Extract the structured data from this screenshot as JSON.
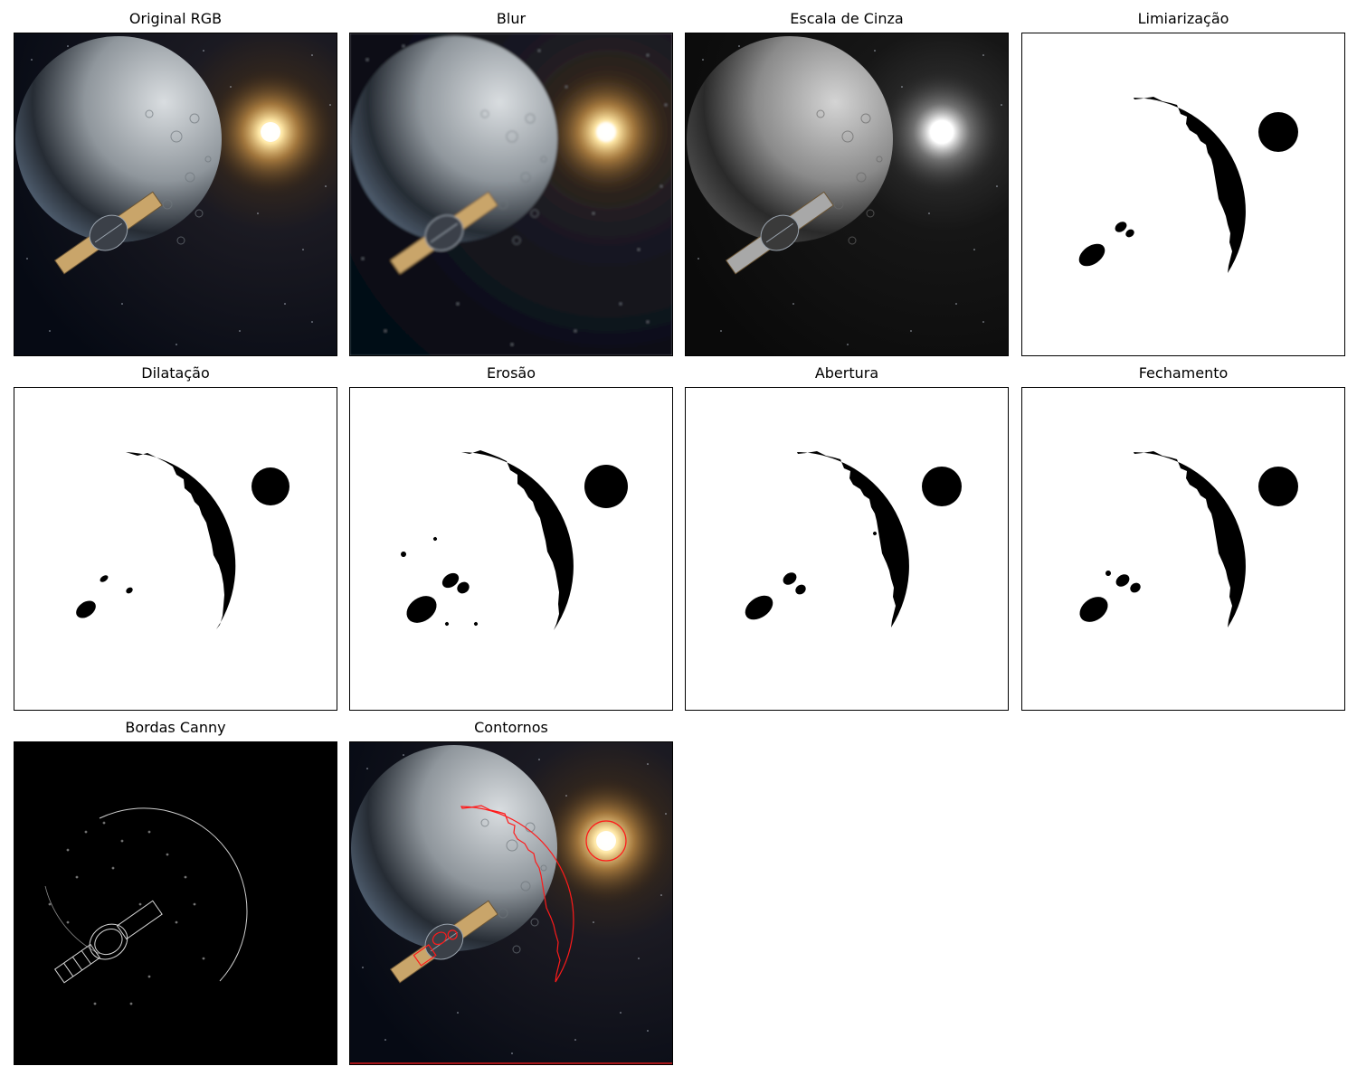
{
  "figure": {
    "panels": [
      {
        "id": "original",
        "title": "Original RGB",
        "kind": "rgb",
        "icon": "moon-satellite-sun-image"
      },
      {
        "id": "blur",
        "title": "Blur",
        "kind": "blur",
        "icon": "moon-satellite-sun-image"
      },
      {
        "id": "gray",
        "title": "Escala de Cinza",
        "kind": "gray",
        "icon": "grayscale-image"
      },
      {
        "id": "threshold",
        "title": "Limiarização",
        "kind": "binary",
        "icon": "binary-mask-image"
      },
      {
        "id": "dilation",
        "title": "Dilatação",
        "kind": "binary",
        "icon": "binary-mask-image"
      },
      {
        "id": "erosion",
        "title": "Erosão",
        "kind": "binary",
        "icon": "binary-mask-image"
      },
      {
        "id": "opening",
        "title": "Abertura",
        "kind": "binary",
        "icon": "binary-mask-image"
      },
      {
        "id": "closing",
        "title": "Fechamento",
        "kind": "binary",
        "icon": "binary-mask-image"
      },
      {
        "id": "canny",
        "title": "Bordas Canny",
        "kind": "edges",
        "icon": "edge-map-image"
      },
      {
        "id": "contours",
        "title": "Contornos",
        "kind": "contours",
        "icon": "contour-overlay-image"
      }
    ],
    "colors": {
      "space": "#060a14",
      "moon_light": "#d9dde0",
      "moon_dark": "#262c34",
      "sun": "#ffe9a8",
      "panel_gold": "#c9a56a",
      "contour": "#ff1a1a",
      "mask": "#000000"
    }
  }
}
